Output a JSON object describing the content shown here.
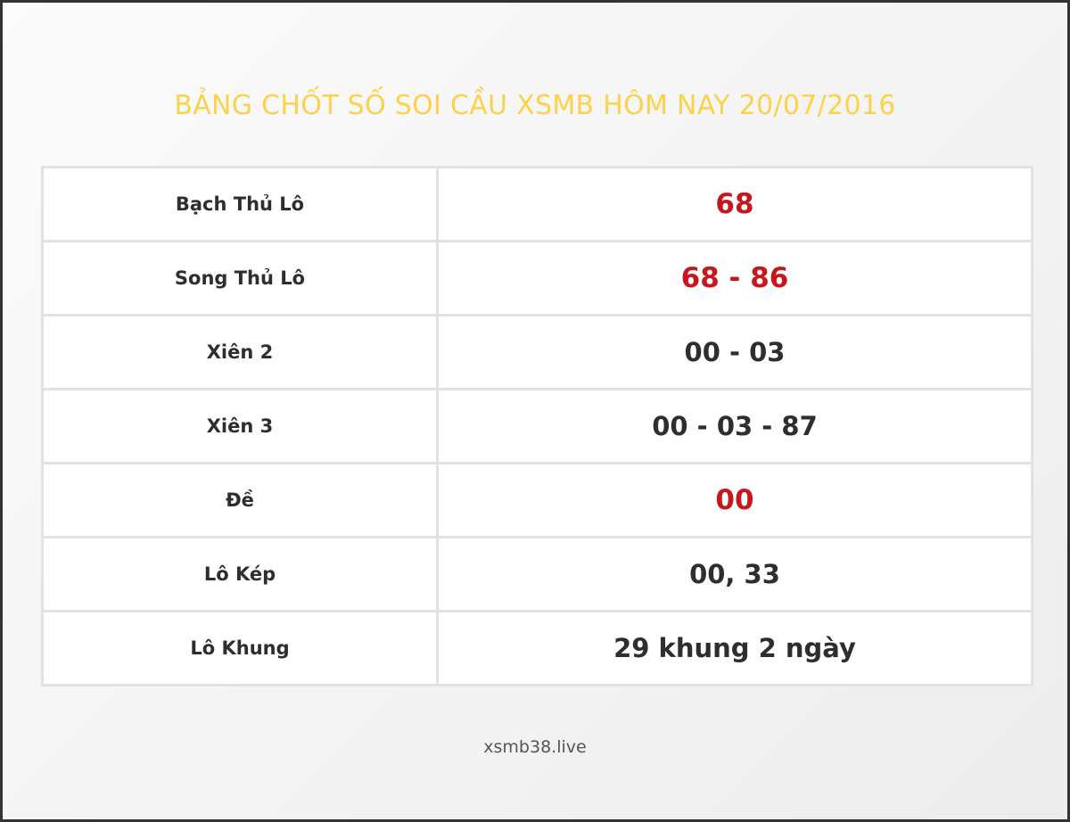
{
  "title": "BẢNG CHỐT SỐ SOI CẦU XSMB HÔM NAY 20/07/2016",
  "rows": [
    {
      "label": "Bạch Thủ Lô",
      "value": "68",
      "highlight": true
    },
    {
      "label": "Song Thủ Lô",
      "value": "68 - 86",
      "highlight": true
    },
    {
      "label": "Xiên 2",
      "value": "00 - 03",
      "highlight": false
    },
    {
      "label": "Xiên 3",
      "value": "00 - 03 - 87",
      "highlight": false
    },
    {
      "label": "Đề",
      "value": "00",
      "highlight": true
    },
    {
      "label": "Lô Kép",
      "value": "00, 33",
      "highlight": false
    },
    {
      "label": "Lô Khung",
      "value": "29 khung 2 ngày",
      "highlight": false
    }
  ],
  "footer": "xsmb38.live",
  "colors": {
    "title": "#fdd24a",
    "highlight": "#c8161d",
    "text": "#2e2e2e"
  }
}
